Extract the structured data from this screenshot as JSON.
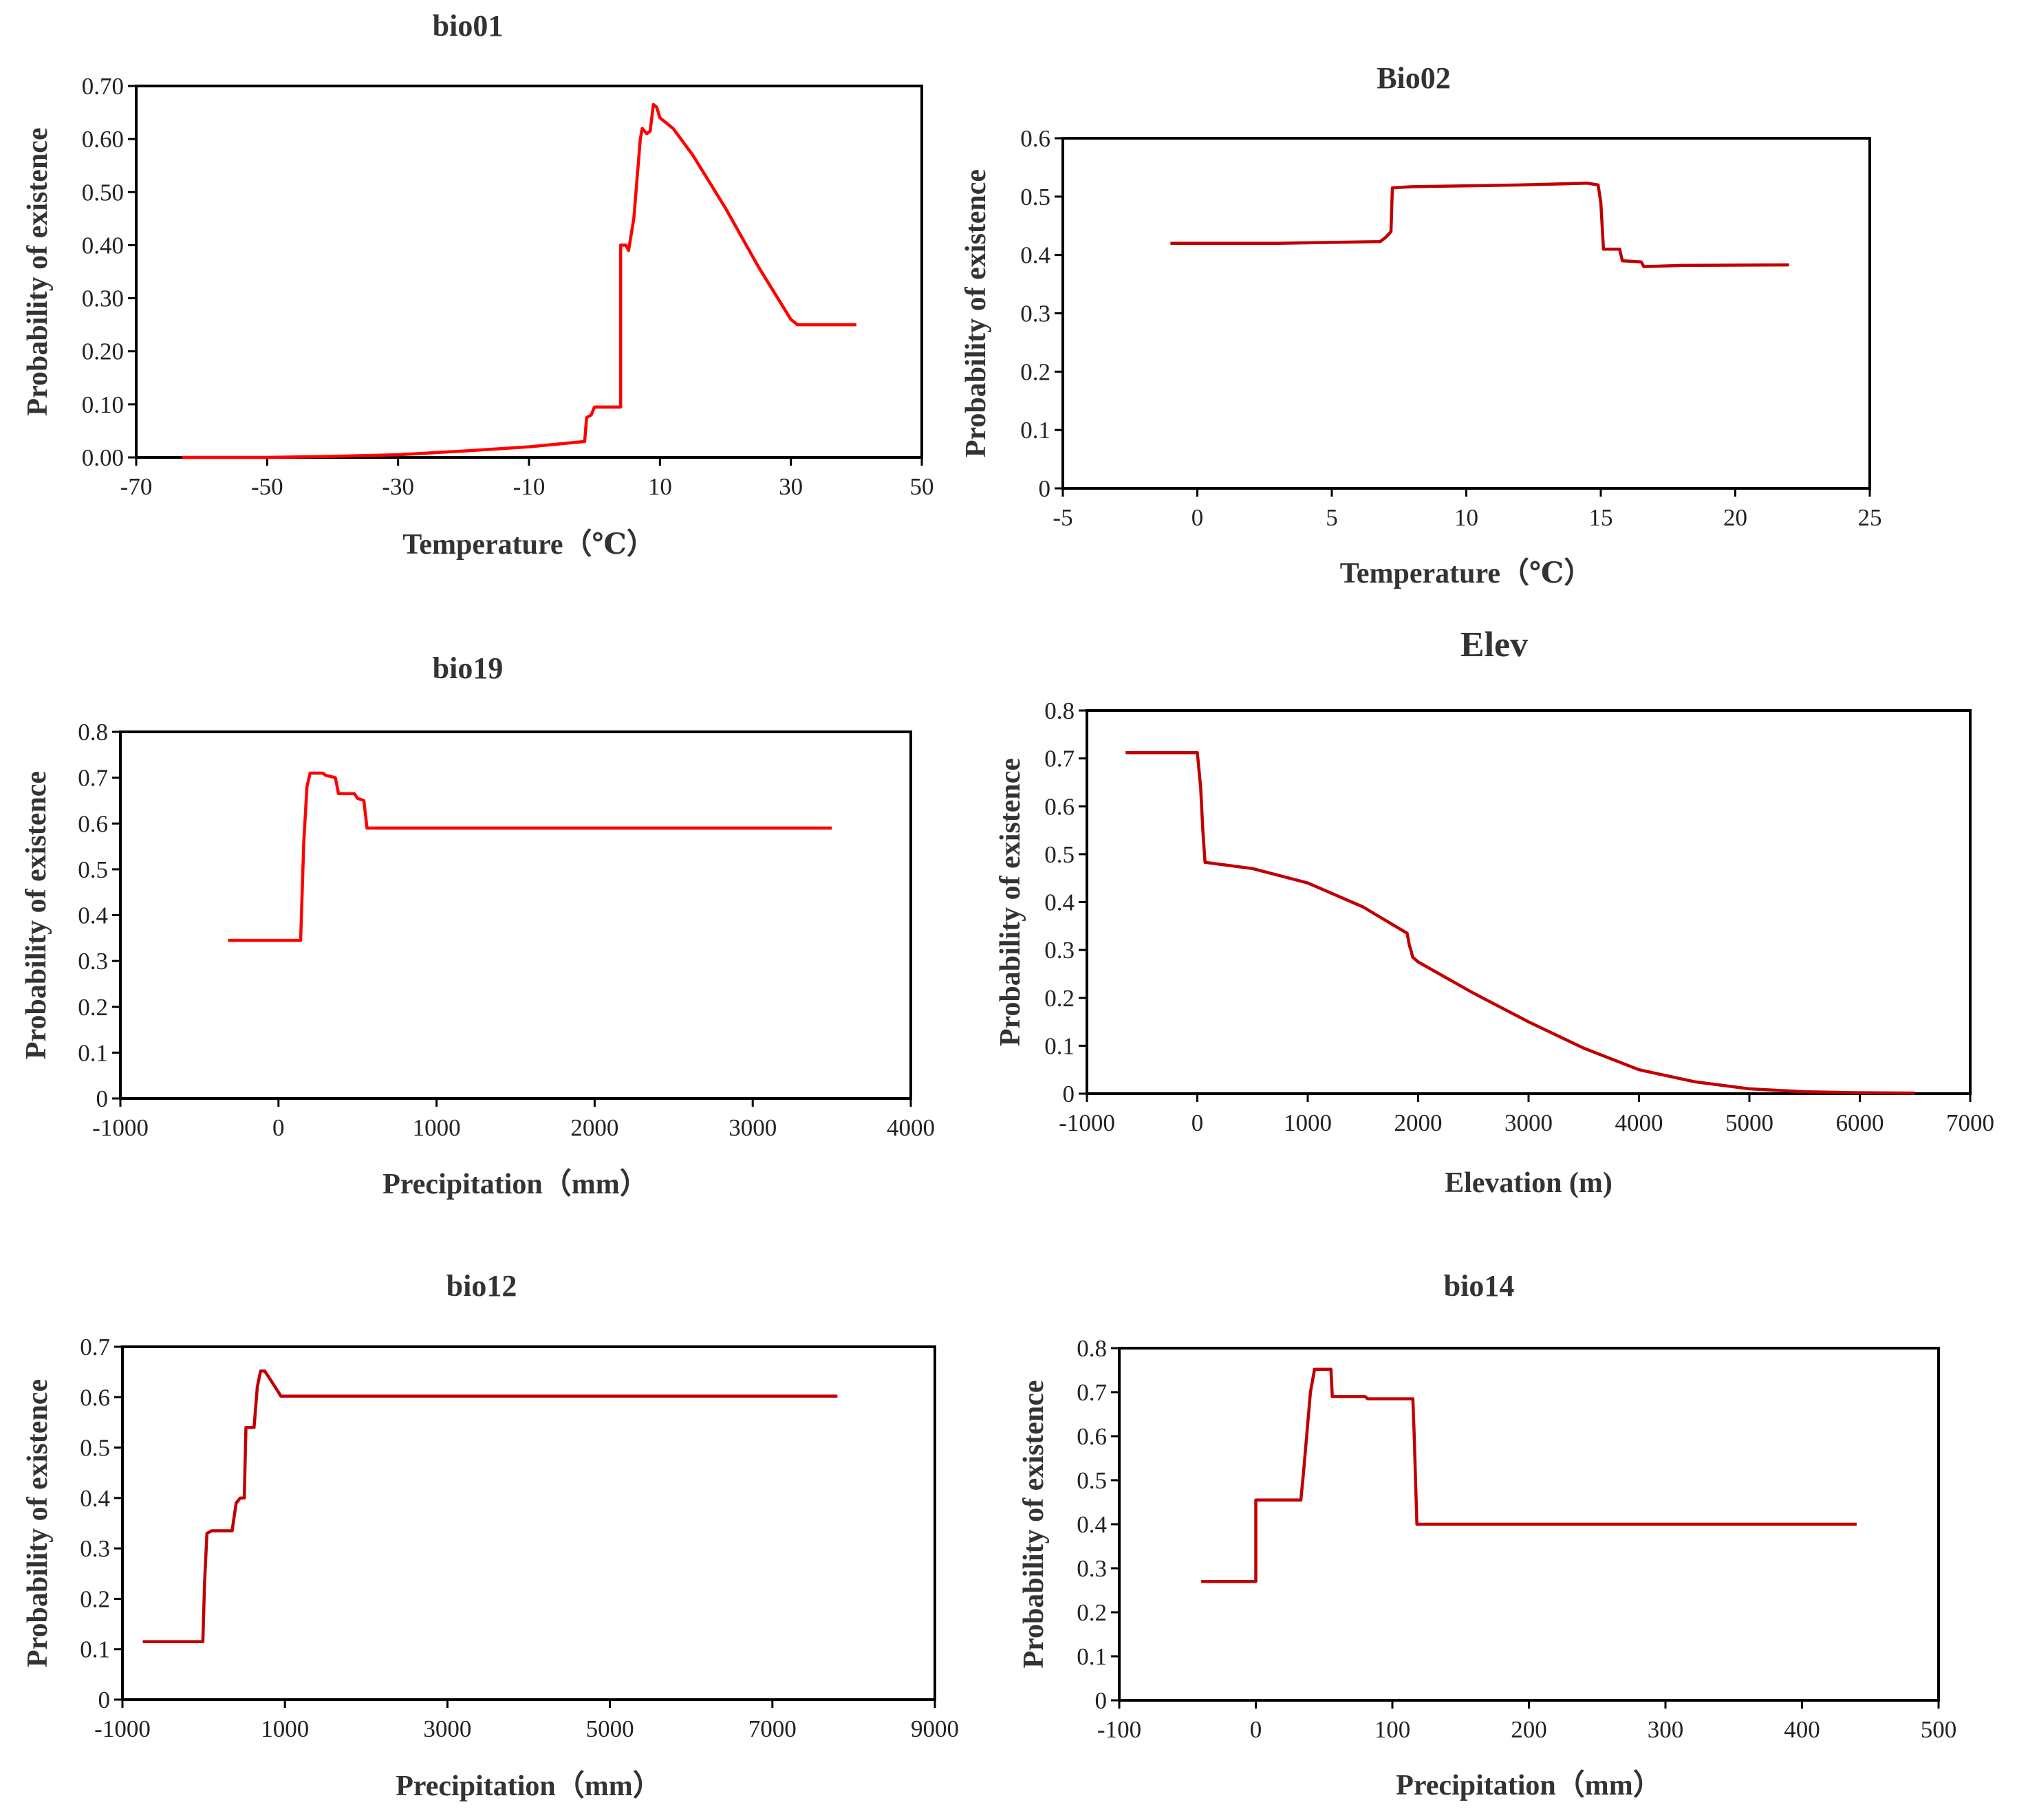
{
  "chart_data": [
    {
      "type": "line",
      "title": "bio01",
      "xlabel": "Temperature（℃）",
      "ylabel": "Probability of existence",
      "xlim": [
        -70,
        50
      ],
      "ylim": [
        0,
        0.7
      ],
      "xticks": [
        -70,
        -50,
        -30,
        -10,
        10,
        30,
        50
      ],
      "yticks": [
        0,
        0.1,
        0.2,
        0.3,
        0.4,
        0.5,
        0.6,
        0.7
      ],
      "ytick_labels": [
        "0.00",
        "0.10",
        "0.20",
        "0.30",
        "0.40",
        "0.50",
        "0.60",
        "0.70"
      ],
      "color": "#ff0000",
      "series": [
        {
          "name": "bio01",
          "x": [
            -63,
            -50,
            -40,
            -30,
            -20,
            -10,
            -1.5,
            -1.2,
            -0.5,
            0,
            2,
            4,
            4,
            4.8,
            5.2,
            6,
            7,
            7.3,
            8,
            8.5,
            9,
            9.5,
            10,
            12,
            15,
            20,
            25,
            30,
            31,
            40
          ],
          "y": [
            0,
            0,
            0.002,
            0.005,
            0.012,
            0.02,
            0.03,
            0.075,
            0.08,
            0.095,
            0.095,
            0.095,
            0.4,
            0.4,
            0.39,
            0.45,
            0.6,
            0.62,
            0.61,
            0.615,
            0.665,
            0.66,
            0.64,
            0.62,
            0.57,
            0.47,
            0.36,
            0.26,
            0.25,
            0.25
          ]
        }
      ]
    },
    {
      "type": "line",
      "title": "Bio02",
      "xlabel": "Temperature（℃）",
      "ylabel": "Probability of existence",
      "xlim": [
        -5,
        25
      ],
      "ylim": [
        0,
        0.6
      ],
      "xticks": [
        -5,
        0,
        5,
        10,
        15,
        20,
        25
      ],
      "yticks": [
        0,
        0.1,
        0.2,
        0.3,
        0.4,
        0.5,
        0.6
      ],
      "ytick_labels": [
        "0",
        "0.1",
        "0.2",
        "0.3",
        "0.4",
        "0.5",
        "0.6"
      ],
      "color": "#c00000",
      "series": [
        {
          "name": "Bio02",
          "x": [
            -1,
            3,
            6.8,
            7,
            7.2,
            7.25,
            8,
            12,
            14.5,
            14.9,
            15,
            15.1,
            15.7,
            15.8,
            16.5,
            16.6,
            18,
            22
          ],
          "y": [
            0.42,
            0.42,
            0.423,
            0.43,
            0.44,
            0.515,
            0.517,
            0.52,
            0.523,
            0.52,
            0.49,
            0.41,
            0.41,
            0.39,
            0.388,
            0.38,
            0.382,
            0.383
          ]
        }
      ]
    },
    {
      "type": "line",
      "title": "bio19",
      "xlabel": "Precipitation（mm）",
      "ylabel": "Probability of existence",
      "xlim": [
        -1000,
        4000
      ],
      "ylim": [
        0,
        0.8
      ],
      "xticks": [
        -1000,
        0,
        1000,
        2000,
        3000,
        4000
      ],
      "yticks": [
        0,
        0.1,
        0.2,
        0.3,
        0.4,
        0.5,
        0.6,
        0.7,
        0.8
      ],
      "ytick_labels": [
        "0",
        "0.1",
        "0.2",
        "0.3",
        "0.4",
        "0.5",
        "0.6",
        "0.7",
        "0.8"
      ],
      "color": "#ff0000",
      "series": [
        {
          "name": "bio19",
          "x": [
            -320,
            140,
            160,
            180,
            200,
            280,
            300,
            360,
            380,
            400,
            480,
            500,
            540,
            560,
            3500
          ],
          "y": [
            0.345,
            0.345,
            0.56,
            0.68,
            0.71,
            0.71,
            0.705,
            0.7,
            0.665,
            0.665,
            0.665,
            0.655,
            0.65,
            0.59,
            0.59
          ]
        }
      ]
    },
    {
      "type": "line",
      "title": "Elev",
      "xlabel": "Elevation (m)",
      "ylabel": "Probability of existence",
      "xlim": [
        -1000,
        7000
      ],
      "ylim": [
        0,
        0.8
      ],
      "xticks": [
        -1000,
        0,
        1000,
        2000,
        3000,
        4000,
        5000,
        6000,
        7000
      ],
      "yticks": [
        0,
        0.1,
        0.2,
        0.3,
        0.4,
        0.5,
        0.6,
        0.7,
        0.8
      ],
      "ytick_labels": [
        "0",
        "0.1",
        "0.2",
        "0.3",
        "0.4",
        "0.5",
        "0.6",
        "0.7",
        "0.8"
      ],
      "color": "#c00000",
      "series": [
        {
          "name": "Elev",
          "x": [
            -650,
            0,
            30,
            50,
            70,
            500,
            1000,
            1500,
            1900,
            1920,
            1940,
            1950,
            2000,
            2500,
            3000,
            3500,
            4000,
            4500,
            5000,
            5500,
            6000,
            6500
          ],
          "y": [
            0.712,
            0.712,
            0.64,
            0.55,
            0.483,
            0.47,
            0.44,
            0.39,
            0.335,
            0.31,
            0.295,
            0.285,
            0.275,
            0.21,
            0.15,
            0.095,
            0.05,
            0.025,
            0.01,
            0.004,
            0.002,
            0.001
          ]
        }
      ]
    },
    {
      "type": "line",
      "title": "bio12",
      "xlabel": "Precipitation（mm）",
      "ylabel": "Probability of existence",
      "xlim": [
        -1000,
        9000
      ],
      "ylim": [
        0,
        0.7
      ],
      "xticks": [
        -1000,
        1000,
        3000,
        5000,
        7000,
        9000
      ],
      "yticks": [
        0,
        0.1,
        0.2,
        0.3,
        0.4,
        0.5,
        0.6,
        0.7
      ],
      "ytick_labels": [
        "0",
        "0.1",
        "0.2",
        "0.3",
        "0.4",
        "0.5",
        "0.6",
        "0.7"
      ],
      "color": "#c00000",
      "series": [
        {
          "name": "bio12",
          "x": [
            -750,
            -10,
            10,
            40,
            100,
            350,
            400,
            450,
            500,
            520,
            550,
            620,
            660,
            700,
            750,
            800,
            900,
            950,
            7800
          ],
          "y": [
            0.115,
            0.115,
            0.23,
            0.33,
            0.335,
            0.335,
            0.39,
            0.4,
            0.4,
            0.54,
            0.54,
            0.54,
            0.62,
            0.652,
            0.652,
            0.64,
            0.615,
            0.602,
            0.602
          ]
        }
      ]
    },
    {
      "type": "line",
      "title": "bio14",
      "xlabel": "Precipitation（mm）",
      "ylabel": "Probability of existence",
      "xlim": [
        -100,
        500
      ],
      "ylim": [
        0,
        0.8
      ],
      "xticks": [
        -100,
        0,
        100,
        200,
        300,
        400,
        500
      ],
      "yticks": [
        0,
        0.1,
        0.2,
        0.3,
        0.4,
        0.5,
        0.6,
        0.7,
        0.8
      ],
      "ytick_labels": [
        "0",
        "0.1",
        "0.2",
        "0.3",
        "0.4",
        "0.5",
        "0.6",
        "0.7",
        "0.8"
      ],
      "color": "#c00000",
      "series": [
        {
          "name": "bio14",
          "x": [
            -40,
            0,
            0,
            33,
            35,
            40,
            43,
            46,
            55,
            56,
            80,
            82,
            115,
            116,
            117,
            118,
            440
          ],
          "y": [
            0.27,
            0.27,
            0.455,
            0.455,
            0.52,
            0.7,
            0.752,
            0.752,
            0.752,
            0.69,
            0.69,
            0.685,
            0.685,
            0.6,
            0.5,
            0.4,
            0.4
          ]
        }
      ]
    }
  ]
}
